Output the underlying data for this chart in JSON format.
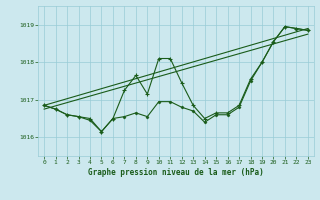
{
  "title": "Graphe pression niveau de la mer (hPa)",
  "background_color": "#cce8ee",
  "grid_color": "#99ccd6",
  "line_color": "#1a5c1a",
  "xlim": [
    -0.5,
    23.5
  ],
  "ylim": [
    1015.5,
    1019.5
  ],
  "yticks": [
    1016,
    1017,
    1018,
    1019
  ],
  "xticks": [
    0,
    1,
    2,
    3,
    4,
    5,
    6,
    7,
    8,
    9,
    10,
    11,
    12,
    13,
    14,
    15,
    16,
    17,
    18,
    19,
    20,
    21,
    22,
    23
  ],
  "series1_x": [
    0,
    1,
    2,
    3,
    4,
    5,
    6,
    7,
    8,
    9,
    10,
    11,
    12,
    13,
    14,
    15,
    16,
    17,
    18,
    19,
    20,
    21,
    22,
    23
  ],
  "series1_y": [
    1016.85,
    1016.75,
    1016.6,
    1016.55,
    1016.5,
    1016.15,
    1016.5,
    1017.25,
    1017.65,
    1017.15,
    1018.1,
    1018.1,
    1017.45,
    1016.85,
    1016.5,
    1016.65,
    1016.65,
    1016.85,
    1017.55,
    1018.0,
    1018.55,
    1018.95,
    1018.9,
    1018.85
  ],
  "series2_x": [
    0,
    1,
    2,
    3,
    4,
    5,
    6,
    7,
    8,
    9,
    10,
    11,
    12,
    13,
    14,
    15,
    16,
    17,
    18,
    19,
    20,
    21,
    22,
    23
  ],
  "series2_y": [
    1016.85,
    1016.75,
    1016.6,
    1016.55,
    1016.45,
    1016.15,
    1016.5,
    1016.55,
    1016.65,
    1016.55,
    1016.95,
    1016.95,
    1016.8,
    1016.7,
    1016.4,
    1016.6,
    1016.6,
    1016.8,
    1017.5,
    1018.0,
    1018.55,
    1018.95,
    1018.9,
    1018.85
  ],
  "series3_x": [
    0,
    23
  ],
  "series3_y": [
    1016.75,
    1018.75
  ],
  "series4_x": [
    0,
    23
  ],
  "series4_y": [
    1016.85,
    1018.9
  ]
}
